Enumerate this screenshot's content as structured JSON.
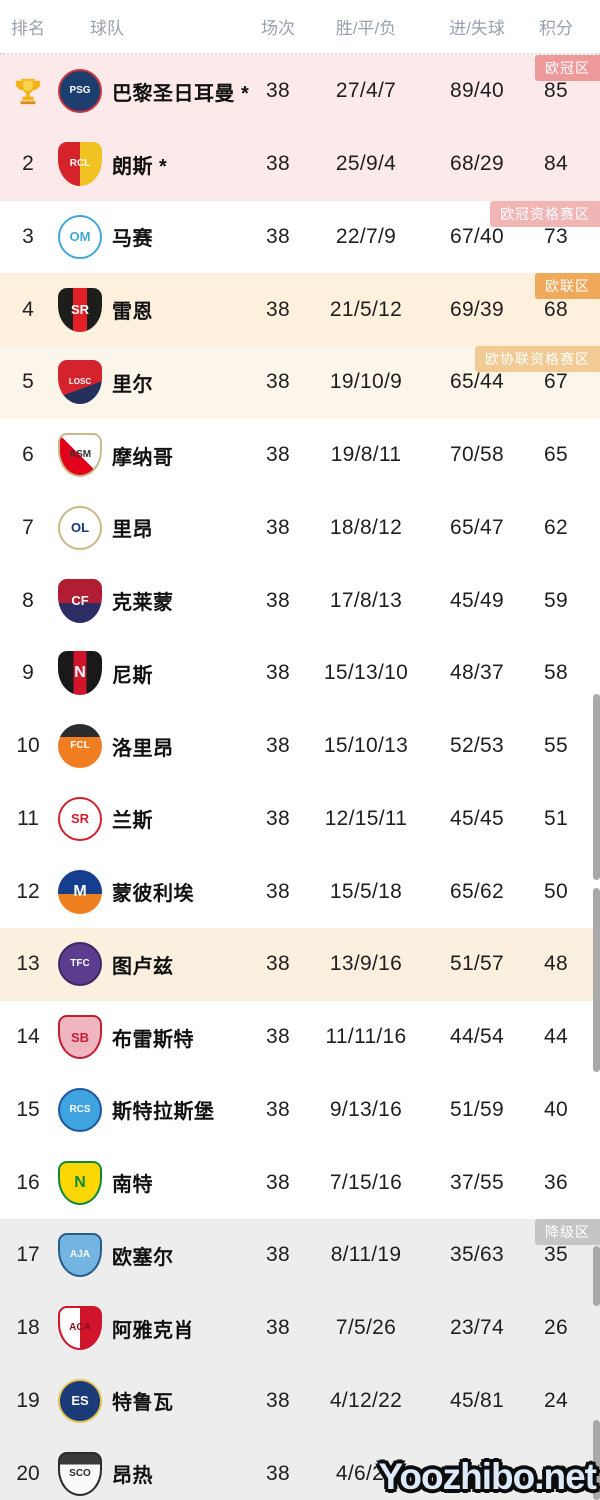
{
  "header": {
    "rank": "排名",
    "team": "球队",
    "played": "场次",
    "wdl": "胜/平/负",
    "goals": "进/失球",
    "points": "积分"
  },
  "zone_colors": {
    "champions_league": "#ee9a9a",
    "cl_qualification": "#f2b5b5",
    "europa_league": "#f0a85b",
    "conference_qualification": "#f1cb93",
    "relegation": "#c5c5c5"
  },
  "section_colors": {
    "top_pink": "#fce9e9",
    "white": "#ffffff",
    "europa_orange": "#fdf1de",
    "conference_cream": "#fcf6ea",
    "toulouse_cream": "#fbf0df",
    "relegation_gray": "#ededed"
  },
  "table": {
    "rows": [
      {
        "rank": "1",
        "rank_icon": "trophy",
        "team": "巴黎圣日耳曼 *",
        "played": "38",
        "wdl": "27/4/7",
        "goals": "89/40",
        "points": "85",
        "row_bg": "#fce9e9",
        "badge": {
          "label": "欧冠区",
          "bg": "#ee9a9a"
        },
        "logo": {
          "shape": "circle",
          "css_bg": "#1c3e6f",
          "border": "#d0323c",
          "text": "PSG",
          "tc": "#ffffff"
        }
      },
      {
        "rank": "2",
        "team": "朗斯 *",
        "played": "38",
        "wdl": "25/9/4",
        "goals": "68/29",
        "points": "84",
        "row_bg": "#fce9e9",
        "logo": {
          "shape": "shield",
          "css_bg": "linear-gradient(90deg,#d6222a 0 50%,#f2c223 50% 100%)",
          "text": "RCL",
          "tc": "#ffffff"
        }
      },
      {
        "rank": "3",
        "team": "马赛",
        "played": "38",
        "wdl": "22/7/9",
        "goals": "67/40",
        "points": "73",
        "row_bg": "#ffffff",
        "badge": {
          "label": "欧冠资格赛区",
          "bg": "#f2b5b5"
        },
        "logo": {
          "shape": "circle",
          "css_bg": "#ffffff",
          "border": "#41a7dc",
          "text": "OM",
          "tc": "#41a7dc"
        }
      },
      {
        "rank": "4",
        "team": "雷恩",
        "played": "38",
        "wdl": "21/5/12",
        "goals": "69/39",
        "points": "68",
        "row_bg": "#fdf1de",
        "badge": {
          "label": "欧联区",
          "bg": "#f0a85b"
        },
        "logo": {
          "shape": "shield",
          "css_bg": "linear-gradient(90deg,#1d1d1b 0 34%,#e01f26 34% 66%,#1d1d1b 66%)",
          "text": "SR",
          "tc": "#ffffff"
        }
      },
      {
        "rank": "5",
        "team": "里尔",
        "played": "38",
        "wdl": "19/10/9",
        "goals": "65/44",
        "points": "67",
        "row_bg": "#fcf6ea",
        "badge": {
          "label": "欧协联资格赛区",
          "bg": "#f1cb93"
        },
        "logo": {
          "shape": "shield",
          "css_bg": "linear-gradient(160deg,#d5232e 0 62%,#23305c 62%)",
          "text": "LOSC",
          "tc": "#ffffff"
        }
      },
      {
        "rank": "6",
        "team": "摩纳哥",
        "played": "38",
        "wdl": "19/8/11",
        "goals": "70/58",
        "points": "65",
        "row_bg": "#ffffff",
        "logo": {
          "shape": "shield",
          "css_bg": "linear-gradient(45deg,#e2001a 0 50%,#ffffff 50%)",
          "border": "#c9b98a",
          "text": "ASM",
          "tc": "#333333"
        }
      },
      {
        "rank": "7",
        "team": "里昂",
        "played": "38",
        "wdl": "18/8/12",
        "goals": "65/47",
        "points": "62",
        "row_bg": "#ffffff",
        "logo": {
          "shape": "circle",
          "css_bg": "#ffffff",
          "border": "#c9b98a",
          "text": "OL",
          "tc": "#17357c"
        }
      },
      {
        "rank": "8",
        "team": "克莱蒙",
        "played": "38",
        "wdl": "17/8/13",
        "goals": "45/49",
        "points": "59",
        "row_bg": "#ffffff",
        "logo": {
          "shape": "shield",
          "css_bg": "linear-gradient(180deg,#b11d33 0 55%,#2b2d64 55%)",
          "text": "CF",
          "tc": "#ffffff"
        }
      },
      {
        "rank": "9",
        "team": "尼斯",
        "played": "38",
        "wdl": "15/13/10",
        "goals": "48/37",
        "points": "58",
        "row_bg": "#ffffff",
        "logo": {
          "shape": "shield",
          "css_bg": "linear-gradient(90deg,#191919 0 35%,#cf142b 35% 65%,#191919 65%)",
          "text": "N",
          "tc": "#ffffff"
        }
      },
      {
        "rank": "10",
        "team": "洛里昂",
        "played": "38",
        "wdl": "15/10/13",
        "goals": "52/53",
        "points": "55",
        "row_bg": "#ffffff",
        "logo": {
          "shape": "circle",
          "css_bg": "linear-gradient(180deg,#2b2b2b 0 30%,#f07d20 30%)",
          "text": "FCL",
          "tc": "#ffffff"
        }
      },
      {
        "rank": "11",
        "team": "兰斯",
        "played": "38",
        "wdl": "12/15/11",
        "goals": "45/45",
        "points": "51",
        "row_bg": "#ffffff",
        "logo": {
          "shape": "circle",
          "css_bg": "#ffffff",
          "border": "#d0202c",
          "text": "SR",
          "tc": "#d0202c"
        }
      },
      {
        "rank": "12",
        "team": "蒙彼利埃",
        "played": "38",
        "wdl": "15/5/18",
        "goals": "65/62",
        "points": "50",
        "row_bg": "#ffffff",
        "logo": {
          "shape": "circle",
          "css_bg": "linear-gradient(180deg,#153e8e 0 55%,#ee7f1f 55%)",
          "text": "M",
          "tc": "#ffffff"
        }
      },
      {
        "rank": "13",
        "team": "图卢兹",
        "played": "38",
        "wdl": "13/9/16",
        "goals": "51/57",
        "points": "48",
        "row_bg": "#fbf0df",
        "logo": {
          "shape": "circle",
          "css_bg": "#5b3c8f",
          "border": "#3d2a63",
          "text": "TFC",
          "tc": "#ffffff"
        }
      },
      {
        "rank": "14",
        "team": "布雷斯特",
        "played": "38",
        "wdl": "11/11/16",
        "goals": "44/54",
        "points": "44",
        "row_bg": "#ffffff",
        "logo": {
          "shape": "shield",
          "css_bg": "#efb6c0",
          "border": "#c21f36",
          "text": "SB",
          "tc": "#c21f36"
        }
      },
      {
        "rank": "15",
        "team": "斯特拉斯堡",
        "played": "38",
        "wdl": "9/13/16",
        "goals": "51/59",
        "points": "40",
        "row_bg": "#ffffff",
        "logo": {
          "shape": "circle",
          "css_bg": "#3fa3e0",
          "border": "#1e56a0",
          "text": "RCS",
          "tc": "#ffffff"
        }
      },
      {
        "rank": "16",
        "team": "南特",
        "played": "38",
        "wdl": "7/15/16",
        "goals": "37/55",
        "points": "36",
        "row_bg": "#ffffff",
        "logo": {
          "shape": "shield",
          "css_bg": "#fcd703",
          "border": "#0f8a3c",
          "text": "N",
          "tc": "#0f8a3c"
        }
      },
      {
        "rank": "17",
        "team": "欧塞尔",
        "played": "38",
        "wdl": "8/11/19",
        "goals": "35/63",
        "points": "35",
        "row_bg": "#ededed",
        "badge": {
          "label": "降级区",
          "bg": "#c5c5c5"
        },
        "logo": {
          "shape": "shield",
          "css_bg": "#74b4e0",
          "border": "#2b5d8c",
          "text": "AJA",
          "tc": "#ffffff"
        }
      },
      {
        "rank": "18",
        "team": "阿雅克肖",
        "played": "38",
        "wdl": "7/5/26",
        "goals": "23/74",
        "points": "26",
        "row_bg": "#ededed",
        "logo": {
          "shape": "shield",
          "css_bg": "linear-gradient(90deg,#ffffff 0 50%,#cf142b 50%)",
          "border": "#cf142b",
          "text": "ACA",
          "tc": "#8a0f1d"
        }
      },
      {
        "rank": "19",
        "team": "特鲁瓦",
        "played": "38",
        "wdl": "4/12/22",
        "goals": "45/81",
        "points": "24",
        "row_bg": "#ededed",
        "logo": {
          "shape": "circle",
          "css_bg": "#1b3a7a",
          "border": "#e3c34d",
          "text": "ES",
          "tc": "#ffffff"
        }
      },
      {
        "rank": "20",
        "team": "昂热",
        "played": "38",
        "wdl": "4/6/28",
        "goals": "33/81",
        "points": "18",
        "row_bg": "#ededed",
        "logo": {
          "shape": "shield",
          "css_bg": "linear-gradient(180deg,#3a3a3a 0 26%,#fafafa 26%)",
          "border": "#2b2b2b",
          "text": "SCO",
          "tc": "#2b2b2b"
        }
      }
    ]
  },
  "watermark": "Yoozhibo.net"
}
